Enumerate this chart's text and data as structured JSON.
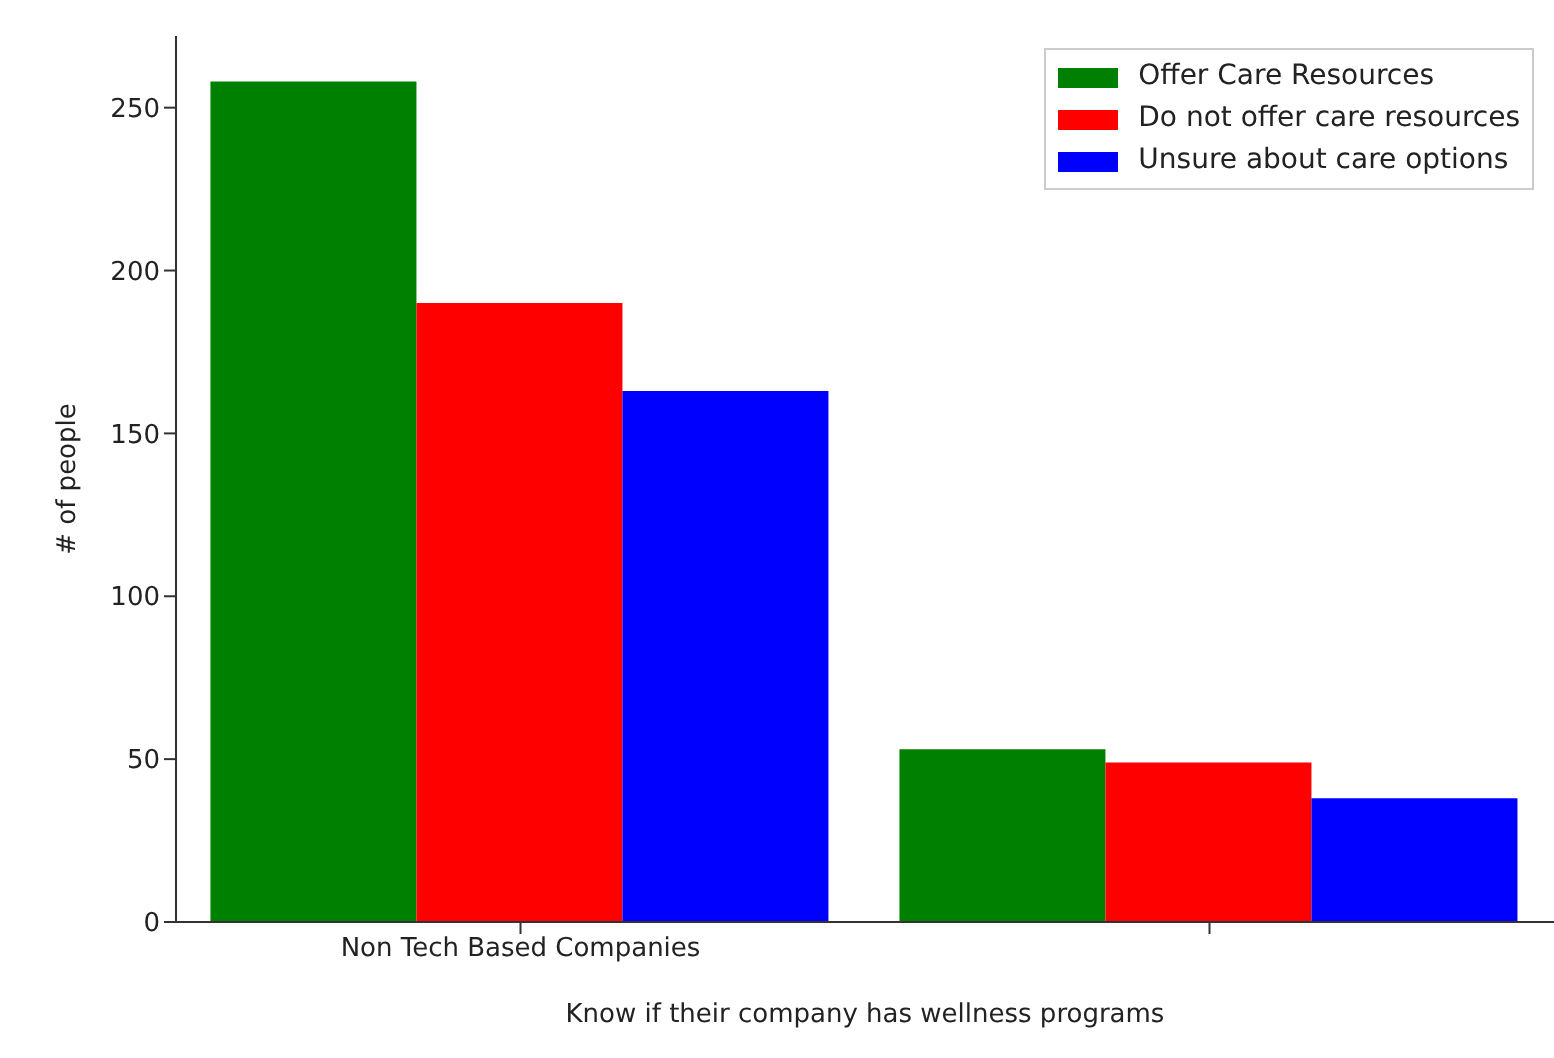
{
  "chart_data": {
    "type": "bar",
    "xlabel": "Know if their company has wellness programs",
    "ylabel": "# of people",
    "categories": [
      "Non Tech Based Companies",
      null
    ],
    "series": [
      {
        "name": "Offer Care Resources",
        "color": "#008000",
        "values": [
          258,
          53
        ]
      },
      {
        "name": "Do not offer care resources",
        "color": "#ff0000",
        "values": [
          190,
          49
        ]
      },
      {
        "name": "Unsure about care options",
        "color": "#0000ff",
        "values": [
          163,
          38
        ]
      }
    ],
    "ylim": [
      0,
      272
    ],
    "yticks": [
      0,
      50,
      100,
      150,
      200,
      250
    ],
    "legend": "top right"
  }
}
